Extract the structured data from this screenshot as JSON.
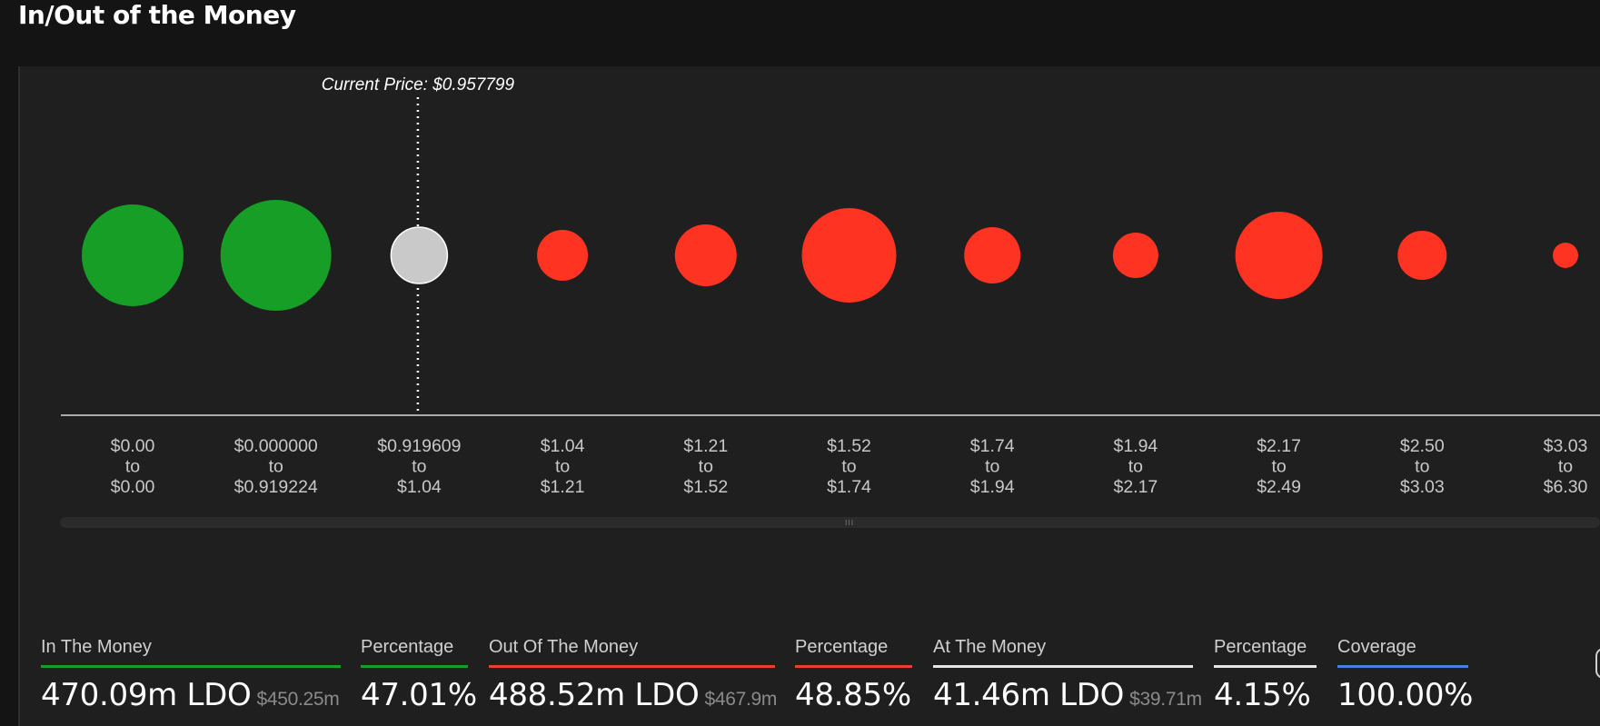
{
  "page": {
    "title": "In/Out of the Money"
  },
  "chart_data": {
    "type": "bubble",
    "current_price_label": "Current Price: $0.957799",
    "categories": [
      {
        "from": "$0.00",
        "to": "$0.00",
        "status": "in"
      },
      {
        "from": "$0.000000",
        "to": "$0.919224",
        "status": "in"
      },
      {
        "from": "$0.919609",
        "to": "$1.04",
        "status": "at"
      },
      {
        "from": "$1.04",
        "to": "$1.21",
        "status": "out"
      },
      {
        "from": "$1.21",
        "to": "$1.52",
        "status": "out"
      },
      {
        "from": "$1.52",
        "to": "$1.74",
        "status": "out"
      },
      {
        "from": "$1.74",
        "to": "$1.94",
        "status": "out"
      },
      {
        "from": "$1.94",
        "to": "$2.17",
        "status": "out"
      },
      {
        "from": "$2.17",
        "to": "$2.49",
        "status": "out"
      },
      {
        "from": "$2.50",
        "to": "$3.03",
        "status": "out"
      },
      {
        "from": "$3.03",
        "to": "$6.30",
        "status": "out"
      }
    ],
    "relative_size": [
      56,
      61,
      31,
      28,
      34,
      52,
      31,
      25,
      48,
      27,
      14
    ],
    "connector_word": "to",
    "colors": {
      "in": "#169e26",
      "out": "#ff3322",
      "at": "#c9c9c9",
      "coverage": "#4a7fe0",
      "axis": "#d9d9d9"
    }
  },
  "stats": {
    "in_the_money": {
      "label": "In The Money",
      "value": "470.09m LDO",
      "usd": "$450.25m"
    },
    "in_percentage": {
      "label": "Percentage",
      "value": "47.01%"
    },
    "out_of_the_money": {
      "label": "Out Of The Money",
      "value": "488.52m LDO",
      "usd": "$467.9m"
    },
    "out_percentage": {
      "label": "Percentage",
      "value": "48.85%"
    },
    "at_the_money": {
      "label": "At The Money",
      "value": "41.46m LDO",
      "usd": "$39.71m"
    },
    "at_percentage": {
      "label": "Percentage",
      "value": "4.15%"
    },
    "coverage": {
      "label": "Coverage",
      "value": "100.00%"
    }
  },
  "scrollbar": {
    "grip": "III"
  }
}
